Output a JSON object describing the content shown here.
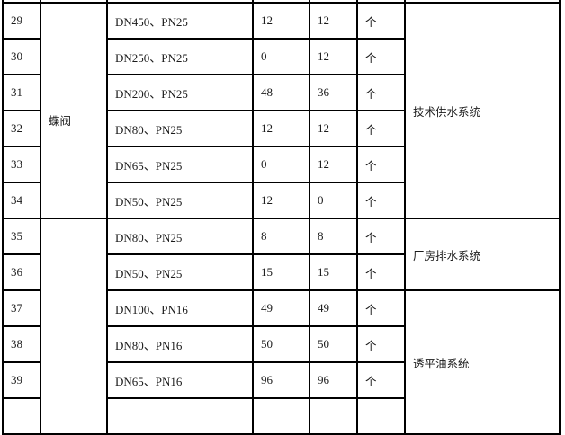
{
  "rows": [
    {
      "no": "29",
      "spec": "DN450、PN25",
      "qty1": "12",
      "qty2": "12",
      "unit": "个"
    },
    {
      "no": "30",
      "spec": "DN250、PN25",
      "qty1": "0",
      "qty2": "12",
      "unit": "个"
    },
    {
      "no": "31",
      "spec": "DN200、PN25",
      "qty1": "48",
      "qty2": "36",
      "unit": "个"
    },
    {
      "no": "32",
      "spec": "DN80、PN25",
      "qty1": "12",
      "qty2": "12",
      "unit": "个"
    },
    {
      "no": "33",
      "spec": "DN65、PN25",
      "qty1": "0",
      "qty2": "12",
      "unit": "个"
    },
    {
      "no": "34",
      "spec": "DN50、PN25",
      "qty1": "12",
      "qty2": "0",
      "unit": "个"
    },
    {
      "no": "35",
      "spec": "DN80、PN25",
      "qty1": "8",
      "qty2": "8",
      "unit": "个"
    },
    {
      "no": "36",
      "spec": "DN50、PN25",
      "qty1": "15",
      "qty2": "15",
      "unit": "个"
    },
    {
      "no": "37",
      "spec": "DN100、PN16",
      "qty1": "49",
      "qty2": "49",
      "unit": "个"
    },
    {
      "no": "38",
      "spec": "DN80、PN16",
      "qty1": "50",
      "qty2": "50",
      "unit": "个"
    },
    {
      "no": "39",
      "spec": "DN65、PN16",
      "qty1": "96",
      "qty2": "96",
      "unit": "个"
    }
  ],
  "groups": {
    "butterfly_valve": "蝶阀",
    "technical_water_supply": "技术供水系统",
    "plant_drainage": "厂房排水系统",
    "turbine_oil": "透平油系统"
  }
}
